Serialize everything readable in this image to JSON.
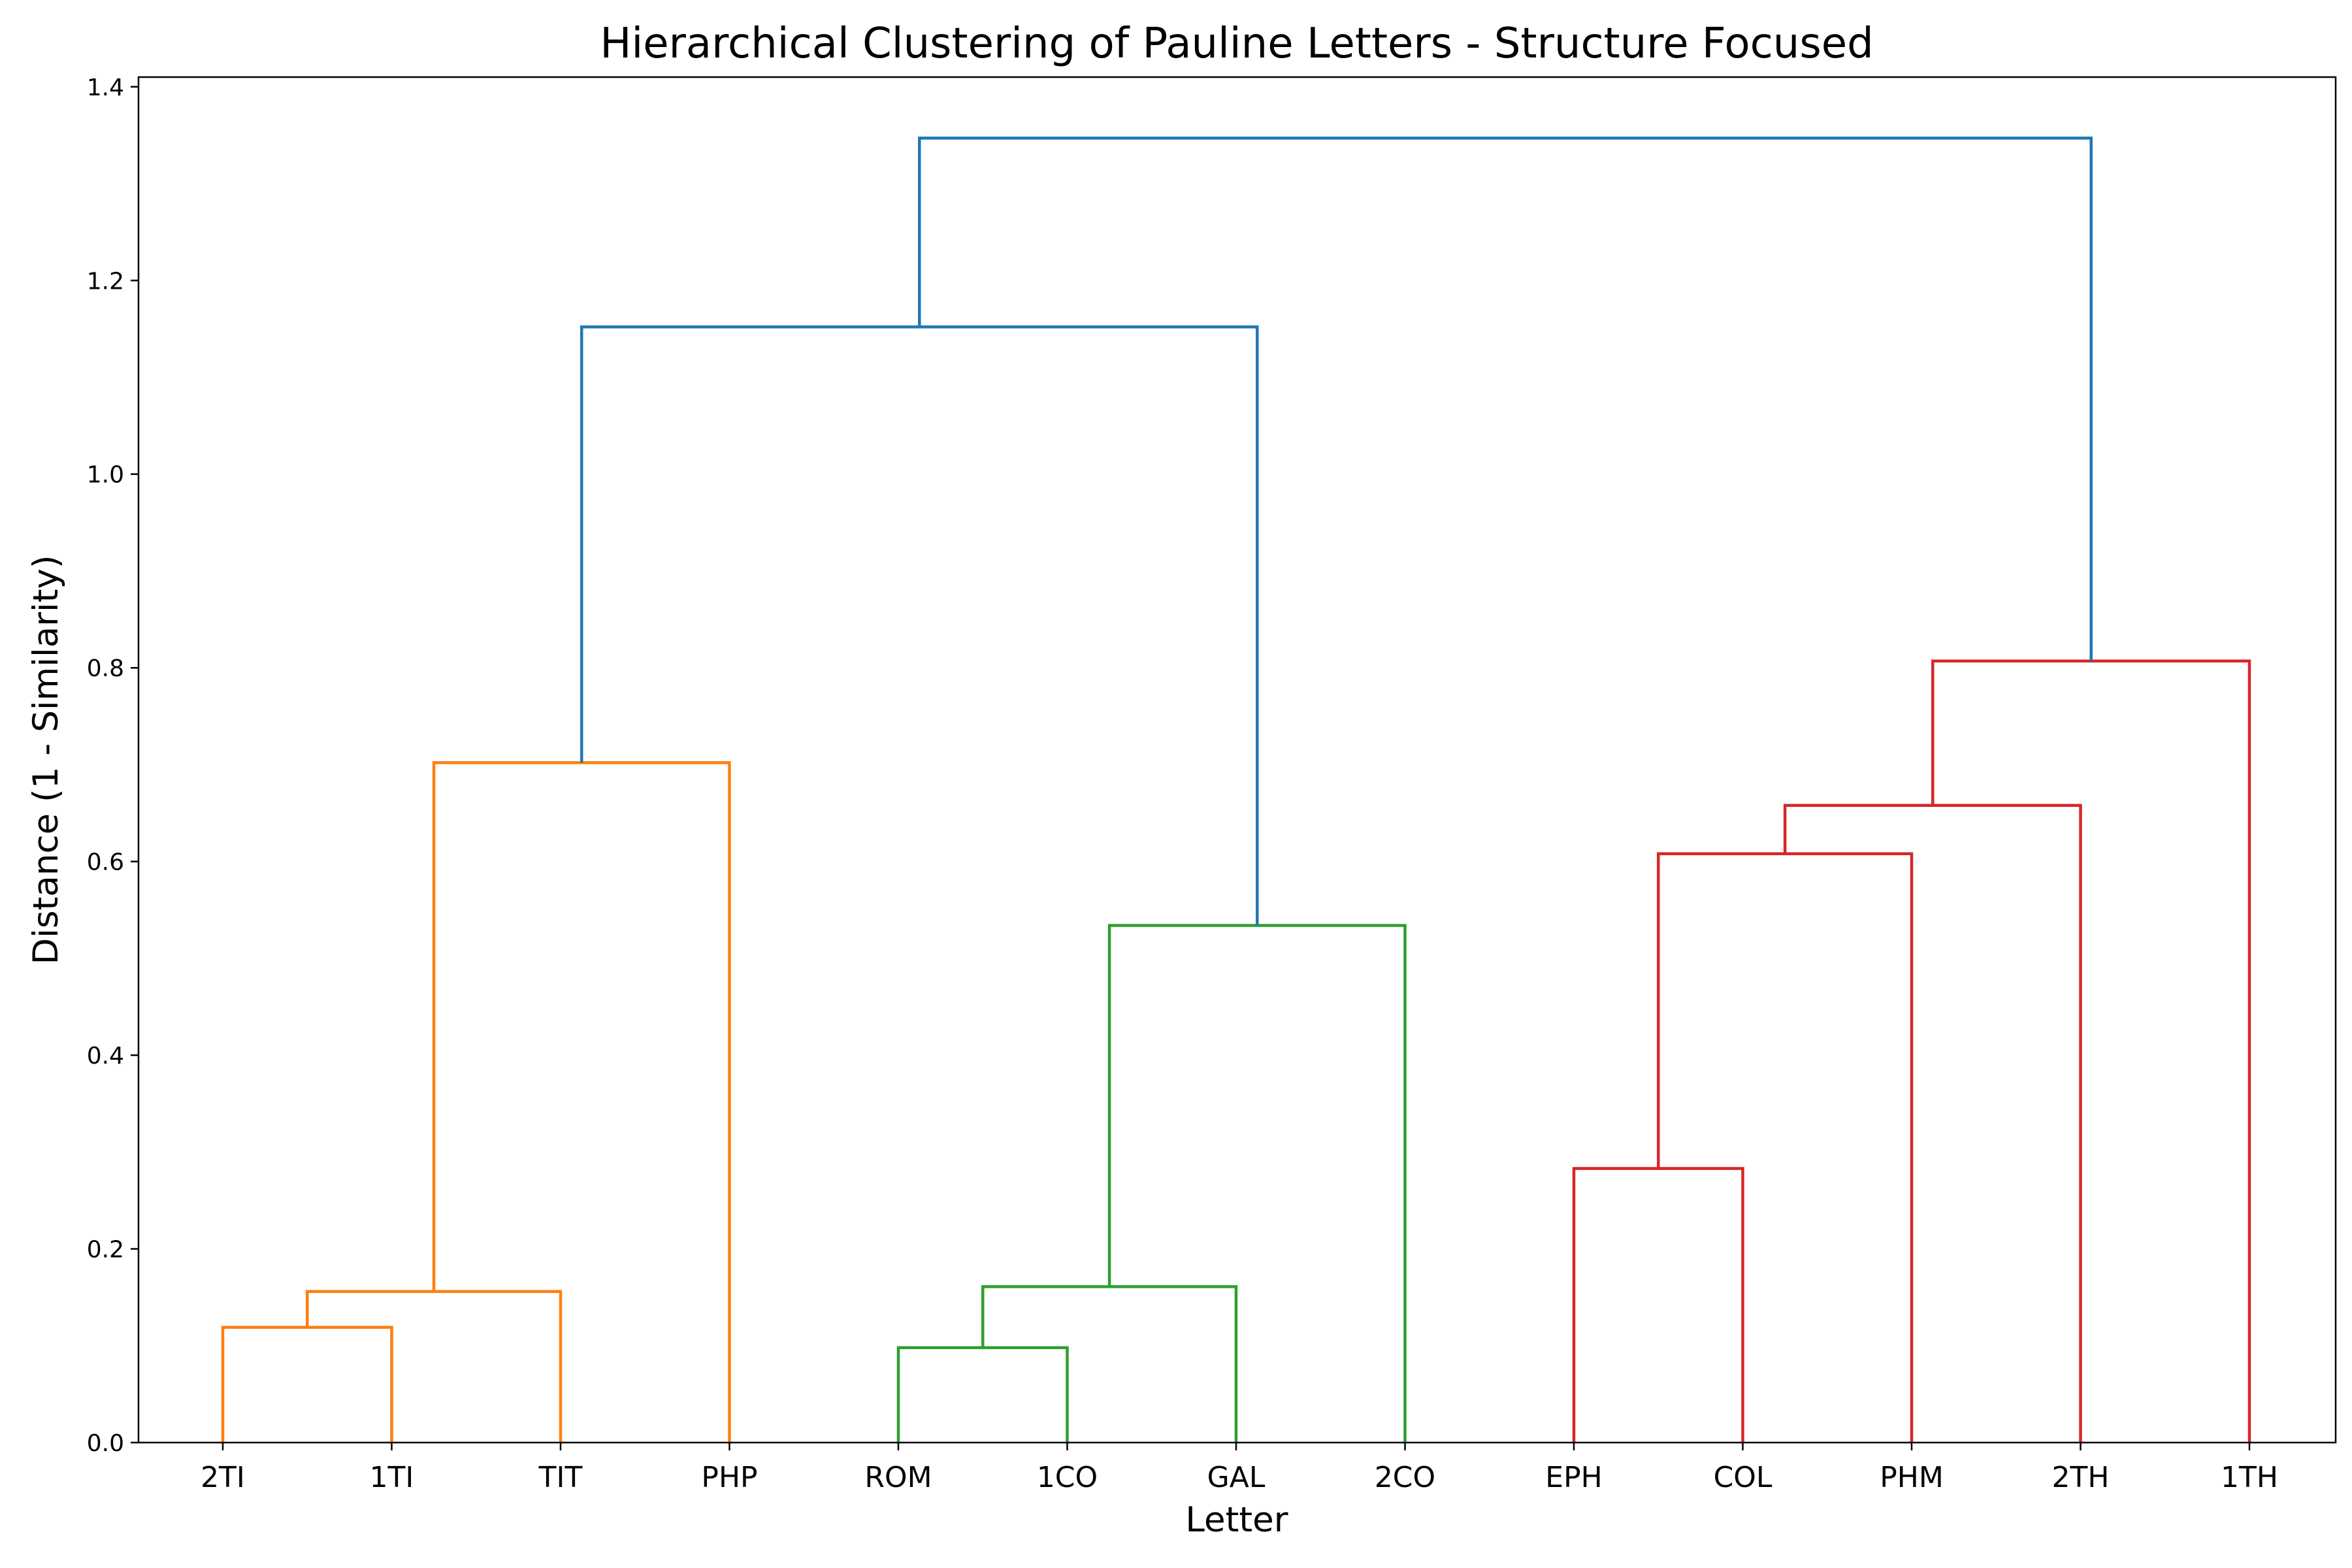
{
  "chart_data": {
    "type": "dendrogram",
    "title": "Hierarchical Clustering of Pauline Letters - Structure Focused",
    "xlabel": "Letter",
    "ylabel": "Distance (1 - Similarity)",
    "ylim": [
      0,
      1.41
    ],
    "yticks": [
      "0.0",
      "0.2",
      "0.4",
      "0.6",
      "0.8",
      "1.0",
      "1.2",
      "1.4"
    ],
    "ytick_values": [
      0.0,
      0.2,
      0.4,
      0.6,
      0.8,
      1.0,
      1.2,
      1.4
    ],
    "leaves": [
      "2TI",
      "1TI",
      "TIT",
      "PHP",
      "ROM",
      "1CO",
      "GAL",
      "2CO",
      "EPH",
      "COL",
      "PHM",
      "2TH",
      "1TH"
    ],
    "colors": {
      "C0": "#1f77b4",
      "C1": "#ff7f0e",
      "C2": "#2ca02c",
      "C3": "#d62728"
    },
    "links": [
      {
        "xs": [
          0,
          0,
          1,
          1
        ],
        "ys": [
          0.0,
          0.119,
          0.119,
          0.0
        ],
        "color": "C1"
      },
      {
        "xs": [
          0.5,
          0.5,
          2,
          2
        ],
        "ys": [
          0.119,
          0.156,
          0.156,
          0.0
        ],
        "color": "C1"
      },
      {
        "xs": [
          1.25,
          1.25,
          3,
          3
        ],
        "ys": [
          0.156,
          0.702,
          0.702,
          0.0
        ],
        "color": "C1"
      },
      {
        "xs": [
          4,
          4,
          5,
          5
        ],
        "ys": [
          0.0,
          0.098,
          0.098,
          0.0
        ],
        "color": "C2"
      },
      {
        "xs": [
          4.5,
          4.5,
          6,
          6
        ],
        "ys": [
          0.098,
          0.161,
          0.161,
          0.0
        ],
        "color": "C2"
      },
      {
        "xs": [
          5.25,
          5.25,
          7,
          7
        ],
        "ys": [
          0.161,
          0.534,
          0.534,
          0.0
        ],
        "color": "C2"
      },
      {
        "xs": [
          2.125,
          2.125,
          6.125,
          6.125
        ],
        "ys": [
          0.702,
          1.152,
          1.152,
          0.534
        ],
        "color": "C0"
      },
      {
        "xs": [
          8,
          8,
          9,
          9
        ],
        "ys": [
          0.0,
          0.283,
          0.283,
          0.0
        ],
        "color": "C3"
      },
      {
        "xs": [
          8.5,
          8.5,
          10,
          10
        ],
        "ys": [
          0.283,
          0.608,
          0.608,
          0.0
        ],
        "color": "C3"
      },
      {
        "xs": [
          9.25,
          9.25,
          11,
          11
        ],
        "ys": [
          0.608,
          0.658,
          0.658,
          0.0
        ],
        "color": "C3"
      },
      {
        "xs": [
          10.125,
          10.125,
          12,
          12
        ],
        "ys": [
          0.658,
          0.807,
          0.807,
          0.0
        ],
        "color": "C3"
      },
      {
        "xs": [
          4.125,
          4.125,
          11.0625,
          11.0625
        ],
        "ys": [
          1.152,
          1.347,
          1.347,
          0.807
        ],
        "color": "C0"
      }
    ]
  }
}
